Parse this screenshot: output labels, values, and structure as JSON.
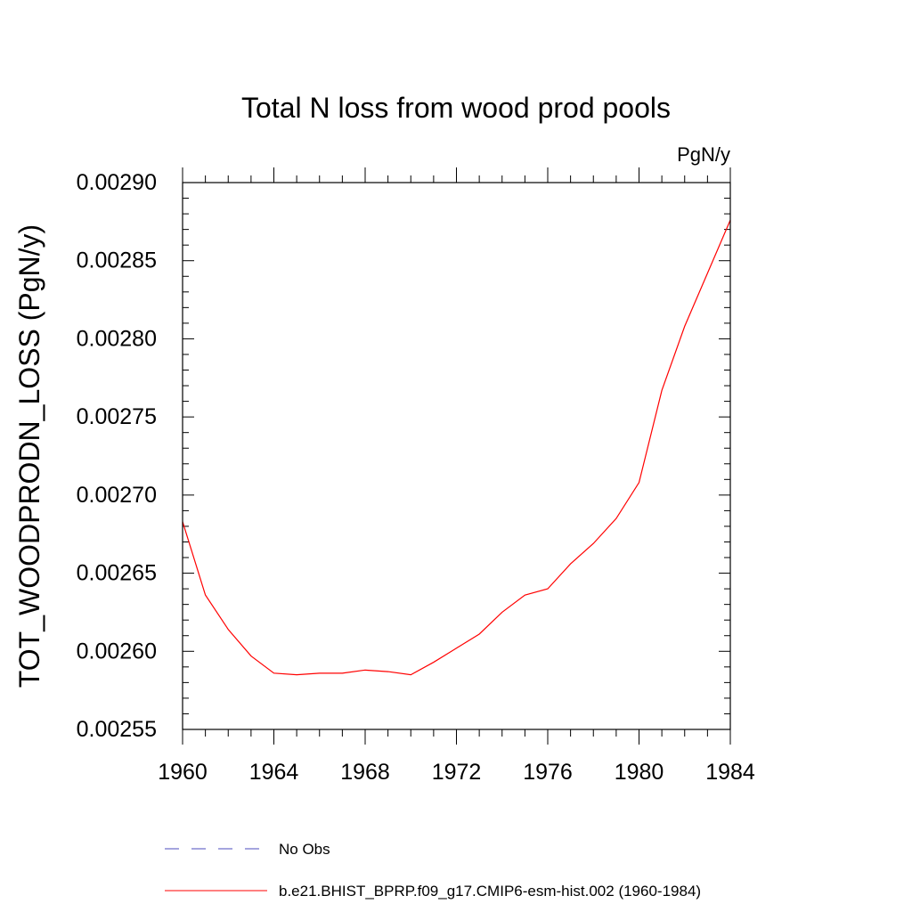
{
  "chart_data": {
    "type": "line",
    "title": "Total N loss from wood prod pools",
    "units_label": "PgN/y",
    "ylabel": "TOT_WOODPRODN_LOSS  (PgN/y)",
    "xlabel": "",
    "xlim": [
      1960,
      1984
    ],
    "ylim": [
      0.00255,
      0.0029
    ],
    "x_ticks": [
      "1960",
      "1964",
      "1968",
      "1972",
      "1976",
      "1980",
      "1984"
    ],
    "y_ticks": [
      "0.00255",
      "0.00260",
      "0.00265",
      "0.00270",
      "0.00275",
      "0.00280",
      "0.00285",
      "0.00290"
    ],
    "grid": false,
    "legend_placement": "bottom",
    "series": [
      {
        "name": "b.e21.BHIST_BPRP.f09_g17.CMIP6-esm-hist.002 (1960-1984)",
        "color": "#ff0000",
        "style": "solid",
        "x": [
          1960,
          1961,
          1962,
          1963,
          1964,
          1965,
          1966,
          1967,
          1968,
          1969,
          1970,
          1971,
          1972,
          1973,
          1974,
          1975,
          1976,
          1977,
          1978,
          1979,
          1980,
          1981,
          1982,
          1983,
          1984
        ],
        "values": [
          0.002683,
          0.002636,
          0.002614,
          0.002597,
          0.002586,
          0.002585,
          0.002586,
          0.002586,
          0.002588,
          0.002587,
          0.002585,
          0.002593,
          0.002602,
          0.002611,
          0.002625,
          0.002636,
          0.00264,
          0.002656,
          0.002669,
          0.002685,
          0.002708,
          0.002767,
          0.002808,
          0.002842,
          0.002876
        ]
      }
    ],
    "legend": [
      {
        "label": "No Obs",
        "color": "#4b4bbd",
        "style": "dashed"
      },
      {
        "label": "b.e21.BHIST_BPRP.f09_g17.CMIP6-esm-hist.002 (1960-1984)",
        "color": "#ff0000",
        "style": "solid"
      }
    ]
  }
}
